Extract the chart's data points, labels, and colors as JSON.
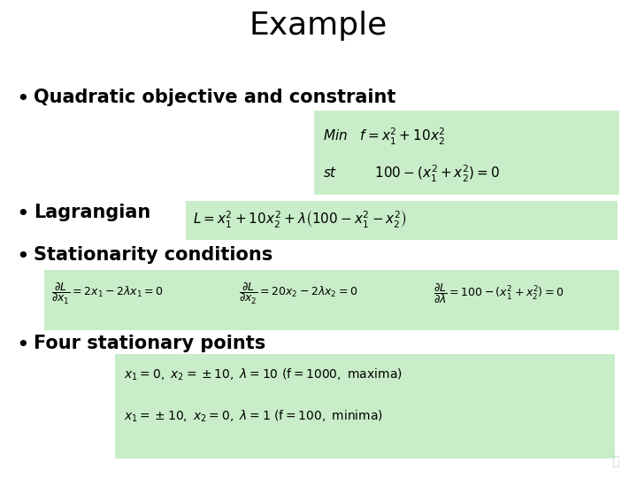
{
  "title": "Example",
  "background_color": "#ffffff",
  "green_box_color": "#c8edc8",
  "bullet1": "Quadratic objective and constraint",
  "bullet2": "Lagrangian",
  "bullet3": "Stationarity conditions",
  "bullet4": "Four stationary points",
  "title_fontsize": 26,
  "bullet_fontsize": 15,
  "formula_fontsize": 11,
  "stat_fontsize": 9,
  "pts_fontsize": 10
}
